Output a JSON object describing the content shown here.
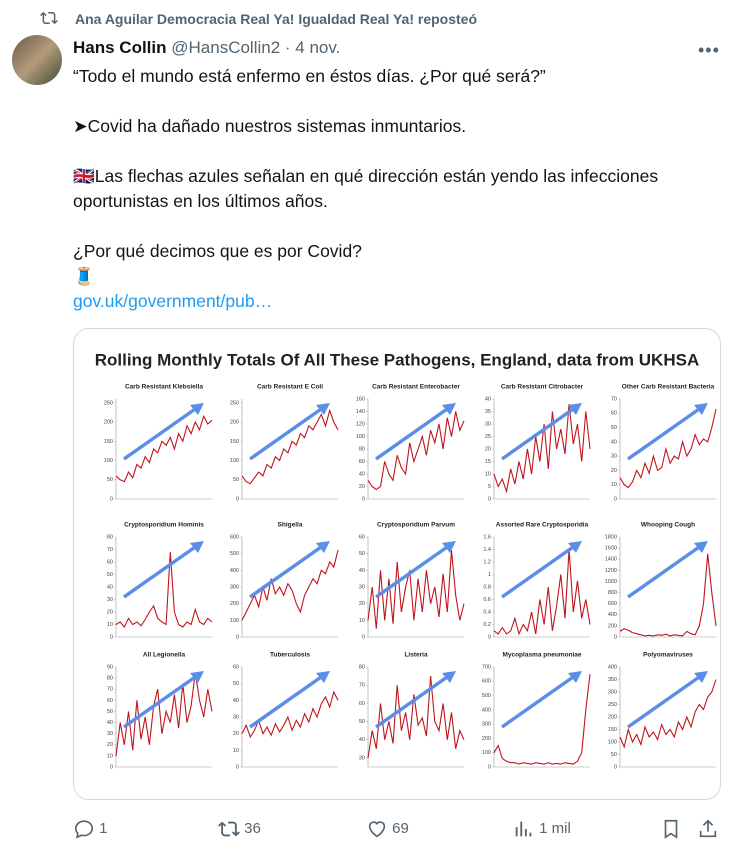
{
  "retweet": "Ana Aguilar Democracia Real Ya! Igualdad Real Ya! reposteó",
  "author": {
    "name": "Hans Collin",
    "handle": "@HansCollin2",
    "date": "· 4 nov."
  },
  "text": [
    "“Todo el mundo está enfermo en éstos días. ¿Por qué será?”",
    "➤Covid ha dañado nuestros sistemas inmuntarios.",
    "🇬🇧Las flechas azules señalan en qué dirección están yendo las infecciones oportunistas en los últimos años.",
    "¿Por qué decimos que es por Covid?",
    "🧵"
  ],
  "link": "gov.uk/government/pub…",
  "image": {
    "title": "Rolling Monthly Totals Of All These Pathogens, England, data from UKHSA",
    "color": "#c0141c",
    "arrow_color": "#5b8ee6",
    "panels": [
      {
        "title": "Carb Resistant Klebsiella",
        "ylim": [
          0,
          260
        ],
        "yticks": [
          0,
          50,
          100,
          150,
          200,
          250
        ],
        "values": [
          60,
          50,
          45,
          70,
          55,
          90,
          80,
          110,
          95,
          130,
          120,
          150,
          140,
          160,
          130,
          170,
          150,
          190,
          170,
          200,
          180,
          215,
          195,
          205
        ]
      },
      {
        "title": "Carb Resistant E Coli",
        "ylim": [
          0,
          260
        ],
        "yticks": [
          0,
          50,
          100,
          150,
          200,
          250
        ],
        "values": [
          60,
          45,
          40,
          55,
          70,
          60,
          90,
          80,
          110,
          100,
          130,
          120,
          150,
          140,
          170,
          160,
          190,
          180,
          200,
          220,
          190,
          230,
          200,
          180
        ]
      },
      {
        "title": "Carb Resistant Enterobacter",
        "ylim": [
          0,
          160
        ],
        "yticks": [
          0,
          20,
          40,
          60,
          80,
          100,
          120,
          140,
          160
        ],
        "values": [
          30,
          20,
          15,
          20,
          60,
          40,
          30,
          70,
          50,
          40,
          90,
          60,
          80,
          100,
          70,
          110,
          90,
          120,
          80,
          130,
          100,
          140,
          110,
          125
        ]
      },
      {
        "title": "Carb Resistant Citrobacter",
        "ylim": [
          0,
          40
        ],
        "yticks": [
          0,
          5,
          10,
          15,
          20,
          25,
          30,
          35,
          40
        ],
        "values": [
          10,
          5,
          8,
          3,
          12,
          6,
          15,
          8,
          20,
          10,
          25,
          15,
          30,
          12,
          35,
          20,
          28,
          18,
          38,
          22,
          30,
          15,
          35,
          20
        ]
      },
      {
        "title": "Other Carb Resistant Bacteria",
        "ylim": [
          0,
          70
        ],
        "yticks": [
          0,
          10,
          20,
          30,
          40,
          50,
          60,
          70
        ],
        "values": [
          15,
          10,
          8,
          12,
          20,
          15,
          25,
          18,
          30,
          20,
          22,
          35,
          25,
          30,
          28,
          40,
          30,
          35,
          45,
          38,
          42,
          40,
          50,
          63
        ]
      },
      {
        "title": "Cryptosporidium Hominis",
        "ylim": [
          0,
          80
        ],
        "yticks": [
          0,
          10,
          20,
          30,
          40,
          50,
          60,
          70,
          80
        ],
        "values": [
          10,
          12,
          8,
          15,
          10,
          12,
          9,
          14,
          20,
          25,
          15,
          12,
          10,
          68,
          20,
          10,
          8,
          12,
          10,
          22,
          12,
          10,
          15,
          12
        ]
      },
      {
        "title": "Shigella",
        "ylim": [
          0,
          600
        ],
        "yticks": [
          0,
          100,
          200,
          300,
          400,
          500,
          600
        ],
        "values": [
          100,
          150,
          200,
          250,
          180,
          300,
          220,
          350,
          260,
          300,
          250,
          320,
          280,
          200,
          150,
          250,
          300,
          350,
          320,
          400,
          380,
          450,
          420,
          520
        ]
      },
      {
        "title": "Cryptosporidium Parvum",
        "ylim": [
          0,
          60
        ],
        "yticks": [
          0,
          10,
          20,
          30,
          40,
          50,
          60
        ],
        "values": [
          10,
          30,
          5,
          40,
          10,
          35,
          8,
          45,
          15,
          30,
          40,
          10,
          35,
          15,
          40,
          20,
          30,
          12,
          38,
          15,
          52,
          25,
          10,
          20
        ]
      },
      {
        "title": "Assorted Rare Cryptosporidia",
        "ylim": [
          0,
          1.6
        ],
        "yticks": [
          0,
          0.2,
          0.4,
          0.6,
          0.8,
          1,
          1.2,
          1.4,
          1.6
        ],
        "values": [
          0.1,
          0.05,
          0.15,
          0.05,
          0.1,
          0.3,
          0.05,
          0.2,
          0.1,
          0.4,
          0.05,
          0.6,
          0.2,
          0.8,
          0.1,
          0.5,
          1.0,
          0.3,
          1.4,
          0.4,
          0.9,
          0.3,
          0.6,
          0.2
        ]
      },
      {
        "title": "Whooping Cough",
        "ylim": [
          0,
          1800
        ],
        "yticks": [
          0,
          200,
          400,
          600,
          800,
          1000,
          1200,
          1400,
          1600,
          1800
        ],
        "values": [
          100,
          150,
          120,
          80,
          60,
          40,
          20,
          30,
          20,
          40,
          30,
          50,
          20,
          40,
          30,
          20,
          100,
          60,
          40,
          200,
          600,
          1500,
          800,
          200
        ]
      },
      {
        "title": "All Legionella",
        "ylim": [
          0,
          90
        ],
        "yticks": [
          0,
          10,
          20,
          30,
          40,
          50,
          60,
          70,
          80,
          90
        ],
        "values": [
          10,
          40,
          20,
          50,
          15,
          60,
          25,
          45,
          20,
          55,
          70,
          30,
          50,
          40,
          65,
          35,
          75,
          40,
          55,
          85,
          60,
          45,
          70,
          50
        ]
      },
      {
        "title": "Tuberculosis",
        "ylim": [
          0,
          60
        ],
        "yticks": [
          0,
          10,
          20,
          30,
          40,
          50,
          60
        ],
        "values": [
          20,
          25,
          18,
          22,
          28,
          20,
          24,
          19,
          26,
          21,
          25,
          30,
          22,
          28,
          24,
          32,
          27,
          35,
          30,
          38,
          42,
          36,
          45,
          40
        ]
      },
      {
        "title": "Listeria",
        "ylim": [
          25,
          80
        ],
        "yticks": [
          30,
          40,
          50,
          60,
          70,
          80
        ],
        "values": [
          30,
          45,
          35,
          60,
          40,
          50,
          38,
          70,
          45,
          55,
          40,
          65,
          48,
          52,
          42,
          75,
          50,
          45,
          60,
          40,
          55,
          35,
          45,
          40
        ]
      },
      {
        "title": "Mycoplasma pneumoniae",
        "ylim": [
          0,
          700
        ],
        "yticks": [
          0,
          100,
          200,
          300,
          400,
          500,
          600,
          700
        ],
        "values": [
          100,
          150,
          60,
          40,
          30,
          30,
          20,
          30,
          25,
          20,
          30,
          25,
          20,
          30,
          20,
          25,
          20,
          30,
          25,
          20,
          40,
          100,
          400,
          650
        ]
      },
      {
        "title": "Polyomaviruses",
        "ylim": [
          0,
          400
        ],
        "yticks": [
          0,
          50,
          100,
          150,
          200,
          250,
          300,
          350,
          400
        ],
        "values": [
          120,
          80,
          150,
          100,
          130,
          90,
          160,
          120,
          140,
          110,
          170,
          130,
          150,
          120,
          180,
          150,
          200,
          160,
          220,
          250,
          230,
          280,
          300,
          350
        ]
      }
    ]
  },
  "actions": {
    "replies": 1,
    "reposts": 36,
    "likes": 69,
    "views": "1 mil"
  }
}
